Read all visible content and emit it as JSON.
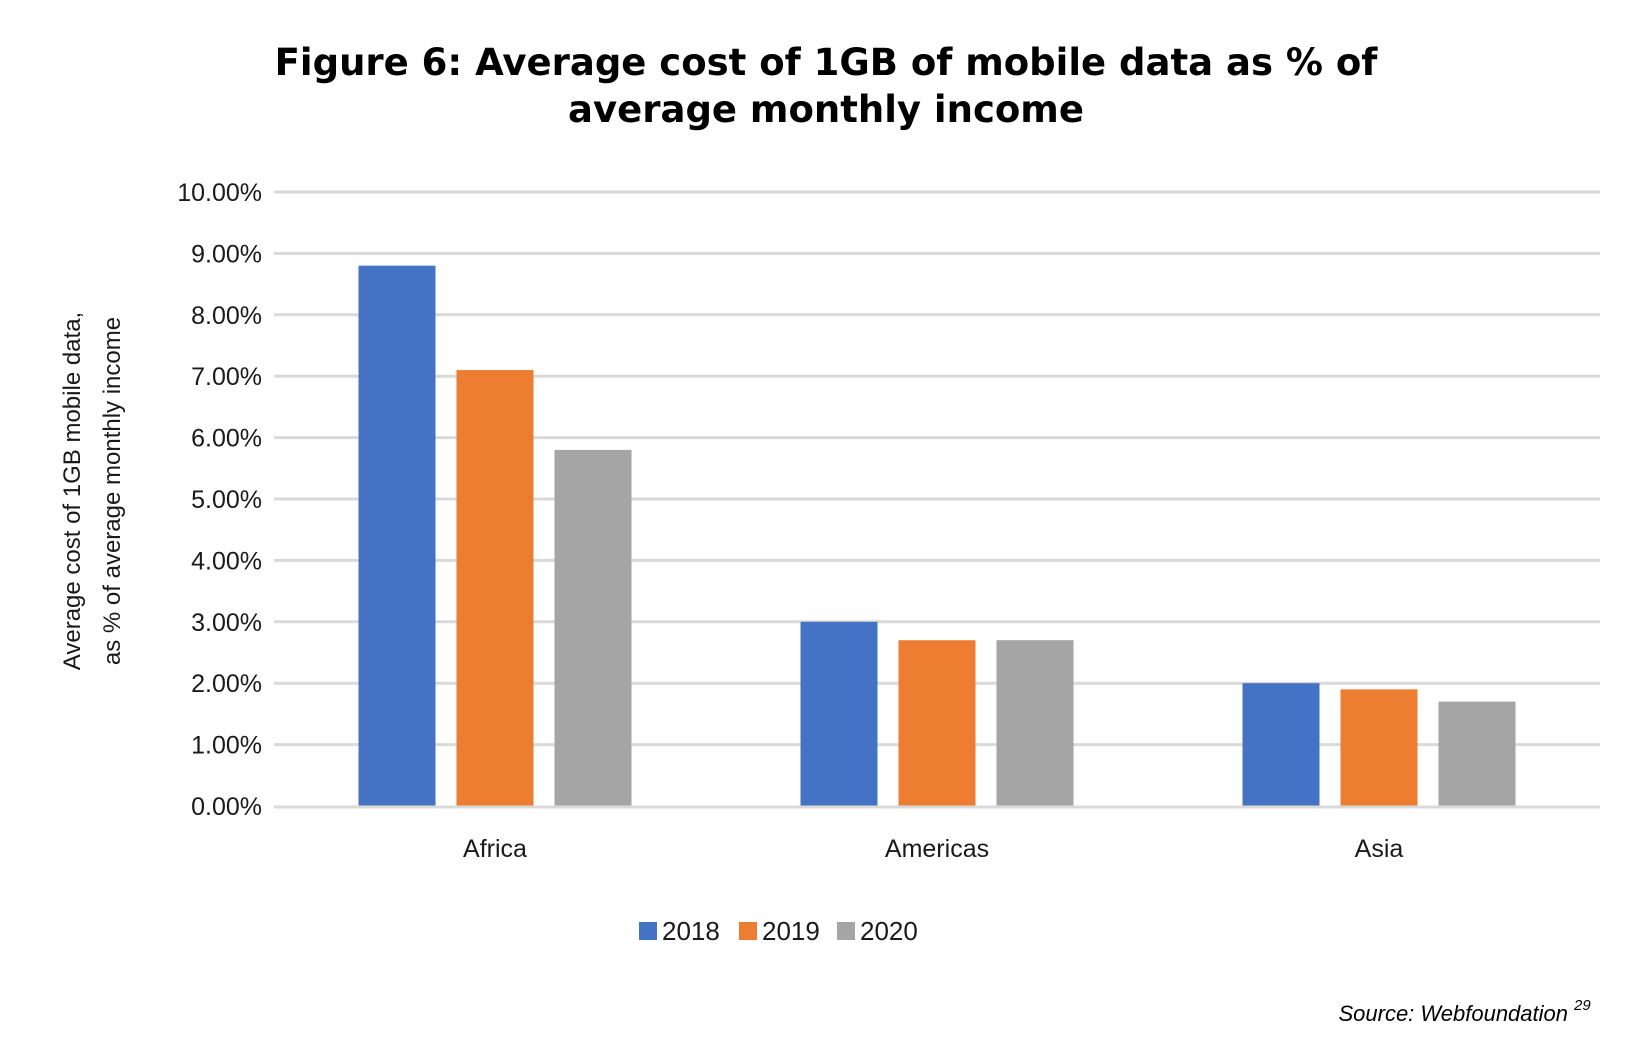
{
  "chart_data": {
    "type": "bar",
    "title_lines": [
      "Figure 6: Average cost of 1GB of mobile data as % of",
      "average monthly income"
    ],
    "title": "Figure 6: Average cost of 1GB of mobile data as % of average monthly income",
    "xlabel": "",
    "ylabel_lines": [
      "Average cost of 1GB mobile data,",
      "as % of average monthly income"
    ],
    "ylabel": "Average cost of 1GB mobile data, as % of average monthly income",
    "categories": [
      "Africa",
      "Americas",
      "Asia"
    ],
    "series": [
      {
        "name": "2018",
        "color": "#4472c4",
        "values": [
          8.8,
          3.0,
          2.0
        ]
      },
      {
        "name": "2019",
        "color": "#ed7d31",
        "values": [
          7.1,
          2.7,
          1.9
        ]
      },
      {
        "name": "2020",
        "color": "#a5a5a5",
        "values": [
          5.8,
          2.7,
          1.7
        ]
      }
    ],
    "ylim": [
      0,
      10
    ],
    "yticks": [
      0,
      1,
      2,
      3,
      4,
      5,
      6,
      7,
      8,
      9,
      10
    ],
    "ytick_labels": [
      "0.00%",
      "1.00%",
      "2.00%",
      "3.00%",
      "4.00%",
      "5.00%",
      "6.00%",
      "7.00%",
      "8.00%",
      "9.00%",
      "10.00%"
    ],
    "units": "%",
    "grid": true,
    "legend_position": "bottom-center",
    "source": "Source: Webfoundation",
    "source_footnote": "29"
  }
}
